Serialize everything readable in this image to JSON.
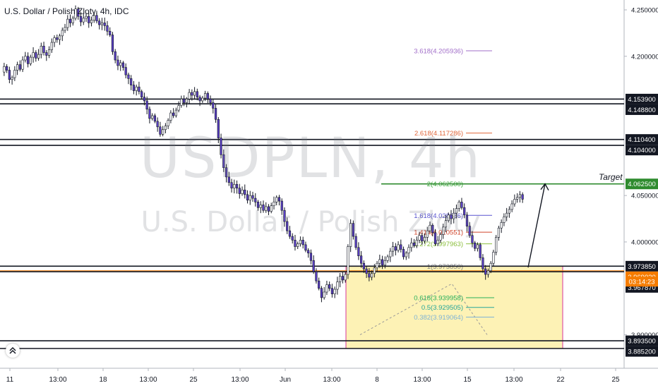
{
  "title": "U.S. Dollar / Polish Zloty, 4h, IDC",
  "watermark": {
    "symbol": "USDPLN, 4h",
    "name": "U.S. Dollar / Polish Zloty"
  },
  "target_label": "Target",
  "colors": {
    "up": "#ffffff",
    "down": "#5a3fc6",
    "wick": "#131722",
    "box_fill": "#fdf2b5",
    "box_border": "#d6349a",
    "target": "#2e8b2e",
    "current": "#f57c00"
  },
  "chart_data": {
    "type": "candlestick",
    "ylim": [
      3.8765,
      4.2545
    ],
    "y_ticks": [
      "4.250000",
      "4.200000",
      "4.050000",
      "4.000000",
      "3.900000"
    ],
    "x_ticks": [
      "11",
      "13:00",
      "18",
      "13:00",
      "25",
      "13:00",
      "Jun",
      "13:00",
      "8",
      "13:00",
      "15",
      "13:00",
      "22",
      "25"
    ],
    "horizontal_levels": [
      {
        "label": "4.153900",
        "value": 4.1539,
        "style": "black"
      },
      {
        "label": "4.148800",
        "value": 4.1488,
        "style": "black"
      },
      {
        "label": "4.110400",
        "value": 4.1104,
        "style": "black"
      },
      {
        "label": "4.104000",
        "value": 4.104,
        "style": "black"
      },
      {
        "label": "4.062500",
        "value": 4.0625,
        "style": "green"
      },
      {
        "label": "3.973850",
        "value": 3.97385,
        "style": "black"
      },
      {
        "label": "3.969020",
        "value": 3.96902,
        "style": "orange"
      },
      {
        "label": "3.967870",
        "value": 3.96787,
        "style": "black"
      },
      {
        "label": "3.893500",
        "value": 3.8935,
        "style": "black"
      },
      {
        "label": "3.885200",
        "value": 3.8852,
        "style": "black"
      }
    ],
    "current_price": "3.969020",
    "countdown": "03:14:23",
    "fib_levels": [
      {
        "label": "3.618(4.205936)",
        "value": 4.205936,
        "color": "#a26fc9"
      },
      {
        "label": "2.618(4.117286)",
        "value": 4.117286,
        "color": "#e0673c"
      },
      {
        "label": "2(4.062500)",
        "value": 4.0625,
        "color": "#38a838"
      },
      {
        "label": "1.618(4.028636)",
        "value": 4.028636,
        "color": "#5a55d0"
      },
      {
        "label": "1.414(4.010551)",
        "value": 4.010551,
        "color": "#d1452b"
      },
      {
        "label": "1.272(3.997963)",
        "value": 3.997963,
        "color": "#8cbf3f"
      },
      {
        "label": "1(3.973850)",
        "value": 3.97385,
        "color": "#888888"
      },
      {
        "label": "0.618(3.939958)",
        "value": 3.939958,
        "color": "#29b05c"
      },
      {
        "label": "0.5(3.929505)",
        "value": 3.929505,
        "color": "#26a69a"
      },
      {
        "label": "0.382(3.919064)",
        "value": 3.919064,
        "color": "#7fb3d5"
      }
    ],
    "range_box": {
      "top": 3.97385,
      "bottom": 3.8852
    },
    "arrow": {
      "from": 3.9725,
      "to": 4.0625
    },
    "candles": {
      "open": 4.183,
      "changes": [
        0.006,
        -0.004,
        -0.01,
        0.002,
        0.008,
        0.006,
        -0.005,
        0.01,
        0.004,
        -0.008,
        0.007,
        0.005,
        -0.006,
        0.004,
        0.009,
        -0.007,
        -0.003,
        0.006,
        0.008,
        0.005,
        -0.002,
        0.004,
        0.006,
        0.003,
        0.009,
        -0.004,
        0.005,
        0.01,
        -0.008,
        -0.006,
        0.004,
        0.002,
        -0.007,
        0.003,
        0.005,
        -0.006,
        -0.004,
        0.002,
        -0.003,
        -0.006,
        -0.004,
        -0.018,
        -0.009,
        -0.006,
        0.003,
        -0.005,
        -0.008,
        -0.004,
        -0.007,
        -0.006,
        0.004,
        -0.005,
        -0.006,
        -0.004,
        -0.009,
        -0.01,
        0.003,
        -0.006,
        -0.006,
        -0.008,
        0.005,
        0.004,
        0.006,
        0.008,
        -0.003,
        0.006,
        0.005,
        0.007,
        -0.004,
        0.004,
        0.007,
        -0.003,
        0.004,
        -0.006,
        -0.004,
        0.003,
        0.005,
        -0.006,
        -0.004,
        -0.006,
        -0.012,
        -0.02,
        -0.018,
        -0.014,
        -0.01,
        -0.006,
        -0.006,
        0.004,
        -0.004,
        -0.006,
        0.004,
        -0.005,
        -0.006,
        0.005,
        -0.003,
        -0.004,
        -0.006,
        0.003,
        -0.006,
        0.004,
        -0.005,
        0.006,
        0.004,
        0.005,
        -0.004,
        -0.01,
        -0.012,
        -0.01,
        -0.006,
        -0.004,
        -0.007,
        0.003,
        0.004,
        -0.005,
        -0.006,
        -0.003,
        -0.008,
        -0.012,
        -0.01,
        -0.008,
        -0.01,
        0.006,
        0.008,
        -0.004,
        -0.006,
        0.005,
        0.008,
        0.006,
        -0.004,
        0.006,
        0.03,
        0.025,
        -0.014,
        -0.012,
        -0.009,
        -0.008,
        -0.006,
        -0.005,
        -0.004,
        0.004,
        0.006,
        0.005,
        0.004,
        -0.006,
        0.005,
        0.004,
        0.006,
        0.005,
        -0.004,
        0.006,
        -0.005,
        -0.008,
        0.004,
        0.006,
        0.005,
        -0.003,
        0.006,
        0.005,
        -0.006,
        0.004,
        0.007,
        0.006,
        -0.008,
        -0.012,
        0.004,
        0.006,
        0.008,
        0.007,
        0.006,
        -0.004,
        0.006,
        0.005,
        0.007,
        -0.006,
        -0.008,
        -0.012,
        -0.01,
        -0.008,
        -0.006,
        0.004,
        -0.014,
        -0.012,
        -0.006,
        0.004,
        0.008,
        0.012,
        0.016,
        0.01,
        0.006,
        0.006,
        0.004,
        0.004,
        0.006,
        0.005,
        0.002,
        0.003,
        -0.005
      ]
    }
  }
}
